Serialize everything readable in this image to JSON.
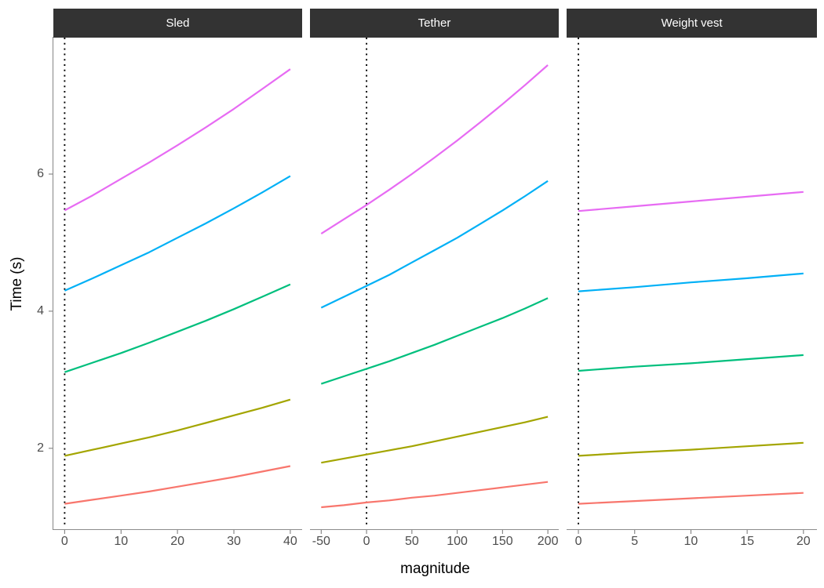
{
  "chart_data": {
    "type": "line",
    "title": "",
    "xlabel": "magnitude",
    "ylabel": "Time (s)",
    "ylim": [
      0.82,
      7.99
    ],
    "yticks": [
      2,
      4,
      6
    ],
    "grid": false,
    "legend": "none",
    "faceted": true,
    "strip_bg": "#333333",
    "strip_text_color": "#ffffff",
    "axis_line_color": "#8c8c8c",
    "tick_color": "#808080",
    "tick_label_color": "#4d4d4d",
    "reference_line": {
      "x": 0,
      "style": "dotted",
      "color": "#000000"
    },
    "panels": [
      {
        "title": "Sled",
        "xlim": [
          -2.0,
          42.1
        ],
        "xticks": [
          0,
          10,
          20,
          30,
          40
        ],
        "vline_x": 0,
        "series": [
          {
            "name": "line-salmon",
            "color": "#F8766D",
            "points": [
              [
                0,
                1.19
              ],
              [
                5,
                1.25
              ],
              [
                10,
                1.31
              ],
              [
                15,
                1.37
              ],
              [
                20,
                1.44
              ],
              [
                25,
                1.51
              ],
              [
                30,
                1.58
              ],
              [
                35,
                1.66
              ],
              [
                40,
                1.74
              ]
            ]
          },
          {
            "name": "line-olive",
            "color": "#A3A500",
            "points": [
              [
                0,
                1.89
              ],
              [
                5,
                1.98
              ],
              [
                10,
                2.07
              ],
              [
                15,
                2.16
              ],
              [
                20,
                2.26
              ],
              [
                25,
                2.37
              ],
              [
                30,
                2.48
              ],
              [
                35,
                2.59
              ],
              [
                40,
                2.71
              ]
            ]
          },
          {
            "name": "line-green",
            "color": "#00BF7D",
            "points": [
              [
                0,
                3.11
              ],
              [
                5,
                3.25
              ],
              [
                10,
                3.39
              ],
              [
                15,
                3.54
              ],
              [
                20,
                3.7
              ],
              [
                25,
                3.86
              ],
              [
                30,
                4.03
              ],
              [
                35,
                4.21
              ],
              [
                40,
                4.39
              ]
            ]
          },
          {
            "name": "line-blue",
            "color": "#00B0F6",
            "points": [
              [
                0,
                4.3
              ],
              [
                5,
                4.48
              ],
              [
                10,
                4.67
              ],
              [
                15,
                4.86
              ],
              [
                20,
                5.07
              ],
              [
                25,
                5.28
              ],
              [
                30,
                5.5
              ],
              [
                35,
                5.73
              ],
              [
                40,
                5.97
              ]
            ]
          },
          {
            "name": "line-magenta",
            "color": "#E76BF3",
            "points": [
              [
                0,
                5.47
              ],
              [
                5,
                5.69
              ],
              [
                10,
                5.93
              ],
              [
                15,
                6.17
              ],
              [
                20,
                6.42
              ],
              [
                25,
                6.68
              ],
              [
                30,
                6.95
              ],
              [
                35,
                7.24
              ],
              [
                40,
                7.53
              ]
            ]
          }
        ]
      },
      {
        "title": "Tether",
        "xlim": [
          -62.4,
          212.0
        ],
        "xticks": [
          -50,
          0,
          50,
          100,
          150,
          200
        ],
        "vline_x": 0,
        "series": [
          {
            "name": "line-salmon",
            "color": "#F8766D",
            "points": [
              [
                -50,
                1.14
              ],
              [
                -25,
                1.17
              ],
              [
                0,
                1.21
              ],
              [
                25,
                1.24
              ],
              [
                50,
                1.28
              ],
              [
                75,
                1.31
              ],
              [
                100,
                1.35
              ],
              [
                125,
                1.39
              ],
              [
                150,
                1.43
              ],
              [
                175,
                1.47
              ],
              [
                200,
                1.51
              ]
            ]
          },
          {
            "name": "line-olive",
            "color": "#A3A500",
            "points": [
              [
                -50,
                1.79
              ],
              [
                -25,
                1.85
              ],
              [
                0,
                1.91
              ],
              [
                25,
                1.97
              ],
              [
                50,
                2.03
              ],
              [
                75,
                2.1
              ],
              [
                100,
                2.17
              ],
              [
                125,
                2.24
              ],
              [
                150,
                2.31
              ],
              [
                175,
                2.38
              ],
              [
                200,
                2.46
              ]
            ]
          },
          {
            "name": "line-green",
            "color": "#00BF7D",
            "points": [
              [
                -50,
                2.94
              ],
              [
                -25,
                3.05
              ],
              [
                0,
                3.16
              ],
              [
                25,
                3.27
              ],
              [
                50,
                3.39
              ],
              [
                75,
                3.51
              ],
              [
                100,
                3.64
              ],
              [
                125,
                3.77
              ],
              [
                150,
                3.9
              ],
              [
                175,
                4.04
              ],
              [
                200,
                4.19
              ]
            ]
          },
          {
            "name": "line-blue",
            "color": "#00B0F6",
            "points": [
              [
                -50,
                4.05
              ],
              [
                -25,
                4.21
              ],
              [
                0,
                4.37
              ],
              [
                25,
                4.53
              ],
              [
                50,
                4.71
              ],
              [
                75,
                4.89
              ],
              [
                100,
                5.07
              ],
              [
                125,
                5.27
              ],
              [
                150,
                5.47
              ],
              [
                175,
                5.68
              ],
              [
                200,
                5.9
              ]
            ]
          },
          {
            "name": "line-magenta",
            "color": "#E76BF3",
            "points": [
              [
                -50,
                5.13
              ],
              [
                -25,
                5.34
              ],
              [
                0,
                5.55
              ],
              [
                25,
                5.77
              ],
              [
                50,
                6.0
              ],
              [
                75,
                6.24
              ],
              [
                100,
                6.49
              ],
              [
                125,
                6.75
              ],
              [
                150,
                7.02
              ],
              [
                175,
                7.3
              ],
              [
                200,
                7.59
              ]
            ]
          }
        ]
      },
      {
        "title": "Weight vest",
        "xlim": [
          -1.05,
          21.2
        ],
        "xticks": [
          0,
          5,
          10,
          15,
          20
        ],
        "vline_x": 0,
        "series": [
          {
            "name": "line-salmon",
            "color": "#F8766D",
            "points": [
              [
                0,
                1.19
              ],
              [
                5,
                1.23
              ],
              [
                10,
                1.27
              ],
              [
                15,
                1.31
              ],
              [
                20,
                1.35
              ]
            ]
          },
          {
            "name": "line-olive",
            "color": "#A3A500",
            "points": [
              [
                0,
                1.89
              ],
              [
                5,
                1.94
              ],
              [
                10,
                1.98
              ],
              [
                15,
                2.03
              ],
              [
                20,
                2.08
              ]
            ]
          },
          {
            "name": "line-green",
            "color": "#00BF7D",
            "points": [
              [
                0,
                3.13
              ],
              [
                5,
                3.19
              ],
              [
                10,
                3.24
              ],
              [
                15,
                3.3
              ],
              [
                20,
                3.36
              ]
            ]
          },
          {
            "name": "line-blue",
            "color": "#00B0F6",
            "points": [
              [
                0,
                4.29
              ],
              [
                5,
                4.35
              ],
              [
                10,
                4.42
              ],
              [
                15,
                4.48
              ],
              [
                20,
                4.55
              ]
            ]
          },
          {
            "name": "line-magenta",
            "color": "#E76BF3",
            "points": [
              [
                0,
                5.46
              ],
              [
                5,
                5.53
              ],
              [
                10,
                5.6
              ],
              [
                15,
                5.67
              ],
              [
                20,
                5.74
              ]
            ]
          }
        ]
      }
    ]
  }
}
